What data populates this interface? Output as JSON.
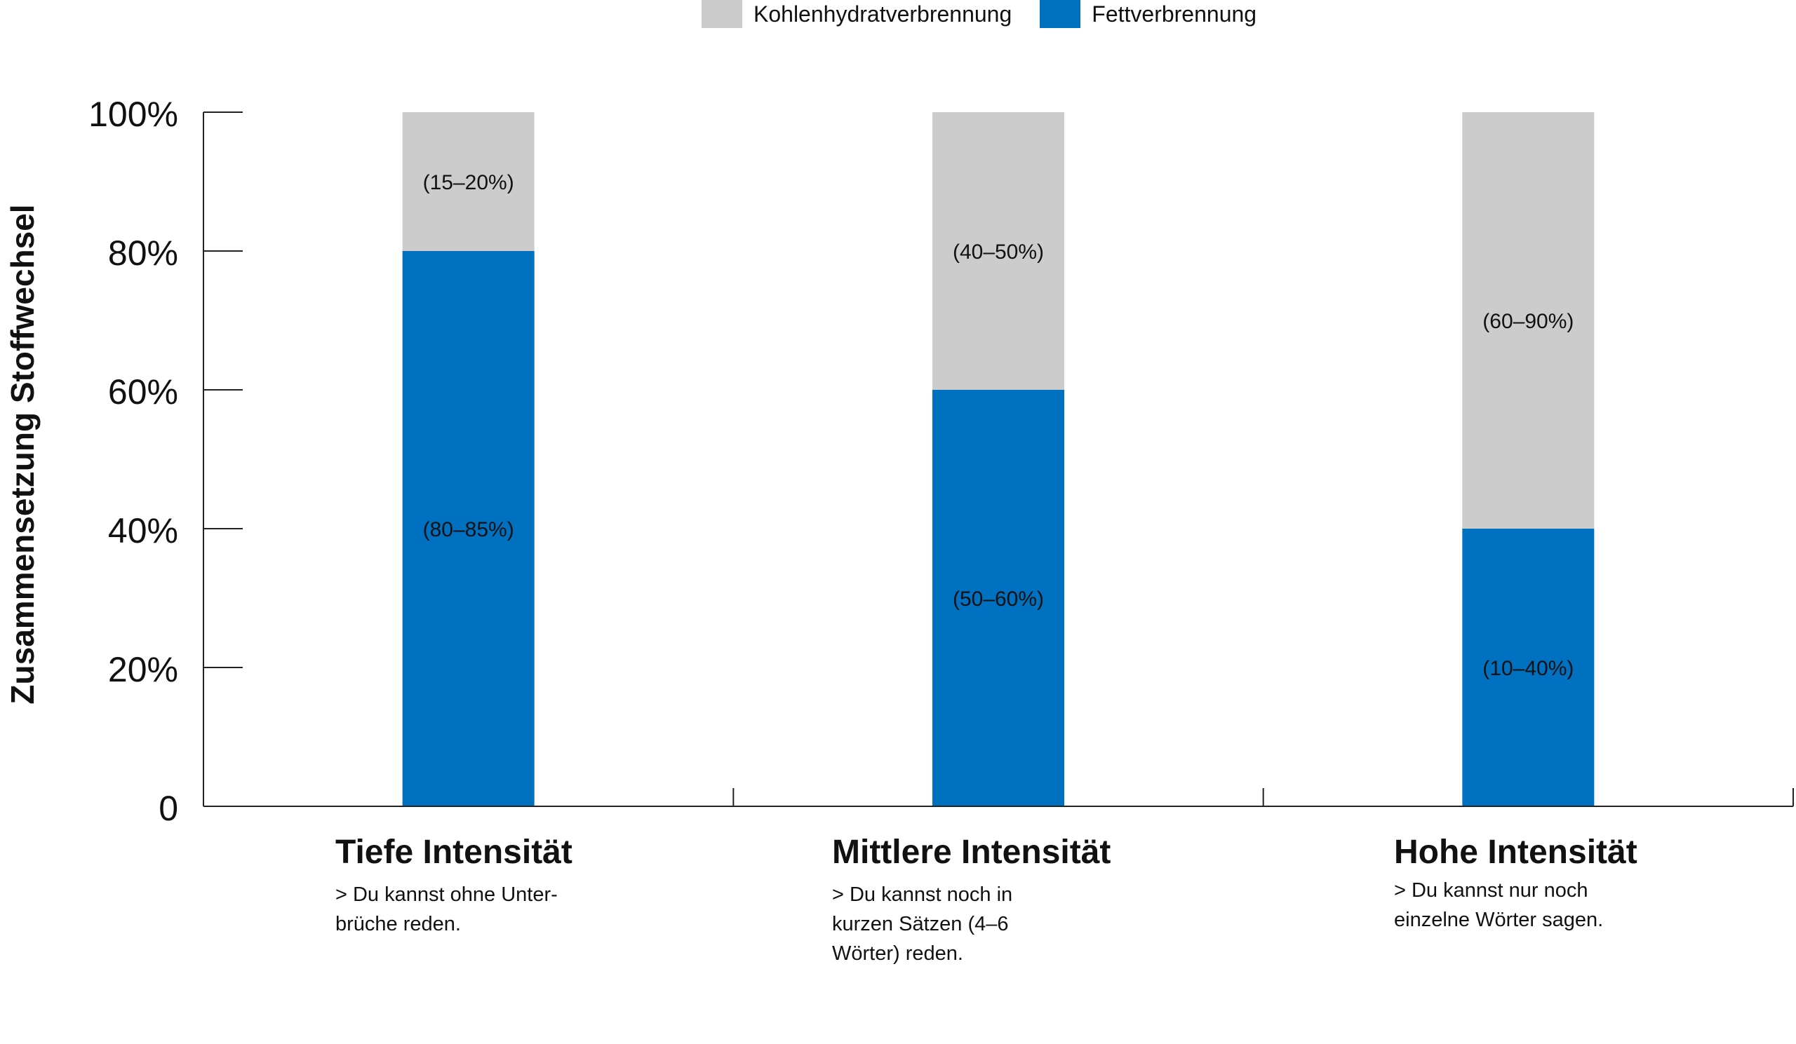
{
  "chart_data": {
    "type": "bar",
    "stacked": true,
    "ylabel": "Zusammensetzung Stoffwechsel",
    "ylim": [
      0,
      100
    ],
    "yticks": [
      "0",
      "20%",
      "40%",
      "60%",
      "80%",
      "100%"
    ],
    "ytick_values": [
      0,
      20,
      40,
      60,
      80,
      100
    ],
    "legend_position": "top-center",
    "categories": [
      {
        "title": "Tiefe Intensität",
        "description": "> Du kannst ohne Unter-\nbrüche reden."
      },
      {
        "title": "Mittlere Intensität",
        "description": "> Du kannst noch in\nkurzen Sätzen (4–6\nWörter) reden."
      },
      {
        "title": "Hohe Intensität",
        "description": "> Du kannst nur noch\neinzelne Wörter sagen."
      }
    ],
    "series": [
      {
        "name": "Fettverbrennung",
        "color": "#0070c0",
        "values": [
          80,
          60,
          40
        ],
        "labels": [
          "(80–85%)",
          "(50–60%)",
          "(10–40%)"
        ]
      },
      {
        "name": "Kohlenhydratverbrennung",
        "color": "#cccccc",
        "values": [
          20,
          40,
          60
        ],
        "labels": [
          "(15–20%)",
          "(40–50%)",
          "(60–90%)"
        ]
      }
    ]
  },
  "legend": [
    {
      "label": "Kohlenhydratverbrennung",
      "color": "#cccccc"
    },
    {
      "label": "Fettverbrennung",
      "color": "#0070c0"
    }
  ]
}
